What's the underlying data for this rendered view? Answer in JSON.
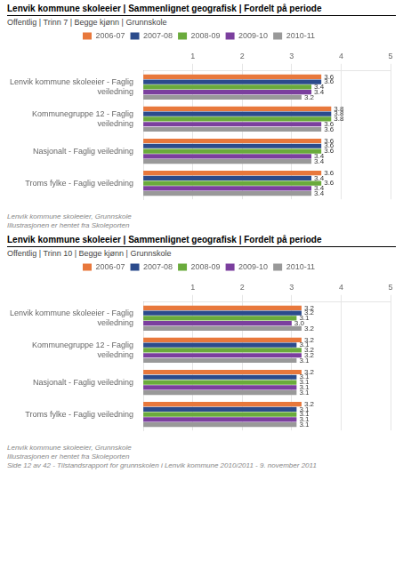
{
  "chart_data": [
    {
      "type": "bar",
      "orientation": "horizontal",
      "title": "Lenvik kommune skoleeier | Sammenlignet geografisk | Fordelt på periode",
      "subtitle": "Offentlig | Trinn 7 | Begge kjønn | Grunnskole",
      "categories": [
        "Lenvik kommune skoleeier - Faglig\nveiledning",
        "Kommunegruppe 12 - Faglig\nveiledning",
        "Nasjonalt - Faglig veiledning",
        "Troms fylke - Faglig veiledning"
      ],
      "series": [
        {
          "name": "2006-07",
          "color": "#E8783C",
          "values": [
            3.6,
            3.8,
            3.6,
            3.6
          ]
        },
        {
          "name": "2007-08",
          "color": "#2B4B8C",
          "values": [
            3.6,
            3.8,
            3.6,
            3.4
          ]
        },
        {
          "name": "2008-09",
          "color": "#6AAB3C",
          "values": [
            3.4,
            3.8,
            3.6,
            3.6
          ]
        },
        {
          "name": "2009-10",
          "color": "#7B3F9E",
          "values": [
            3.4,
            3.6,
            3.4,
            3.4
          ]
        },
        {
          "name": "2010-11",
          "color": "#999999",
          "values": [
            3.2,
            3.6,
            3.4,
            3.4
          ]
        }
      ],
      "xlim": [
        0,
        5
      ],
      "xticks": [
        1,
        2,
        3,
        4,
        5
      ],
      "grid": true,
      "legend": "top",
      "data_labels": true,
      "annotations": [
        "Lenvik kommune skoleeier, Grunnskole",
        "Illustrasjonen er hentet fra Skoleporten"
      ]
    },
    {
      "type": "bar",
      "orientation": "horizontal",
      "title": "Lenvik kommune skoleeier | Sammenlignet geografisk | Fordelt på periode",
      "subtitle": "Offentlig | Trinn 10 | Begge kjønn | Grunnskole",
      "categories": [
        "Lenvik kommune skoleeier - Faglig\nveiledning",
        "Kommunegruppe 12 - Faglig\nveiledning",
        "Nasjonalt - Faglig veiledning",
        "Troms fylke - Faglig veiledning"
      ],
      "series": [
        {
          "name": "2006-07",
          "color": "#E8783C",
          "values": [
            3.2,
            3.2,
            3.2,
            3.2
          ]
        },
        {
          "name": "2007-08",
          "color": "#2B4B8C",
          "values": [
            3.2,
            3.1,
            3.1,
            3.1
          ]
        },
        {
          "name": "2008-09",
          "color": "#6AAB3C",
          "values": [
            3.1,
            3.2,
            3.1,
            3.1
          ]
        },
        {
          "name": "2009-10",
          "color": "#7B3F9E",
          "values": [
            3.0,
            3.2,
            3.1,
            3.1
          ],
          "value_labels": [
            "3.0",
            "3.2",
            "3.1",
            "3.1"
          ]
        },
        {
          "name": "2010-11",
          "color": "#999999",
          "values": [
            3.2,
            3.1,
            3.1,
            3.1
          ]
        }
      ],
      "xlim": [
        0,
        5
      ],
      "xticks": [
        1,
        2,
        3,
        4,
        5
      ],
      "grid": true,
      "legend": "top",
      "data_labels": true,
      "annotations": [
        "Lenvik kommune skoleeier, Grunnskole",
        "Illustrasjonen er hentet fra Skoleporten",
        "Side 12 av 42 - Tilstandsrapport for grunnskolen i Lenvik kommune 2010/2011 - 9. november 2011"
      ]
    }
  ]
}
